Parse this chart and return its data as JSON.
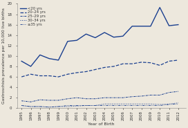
{
  "years": [
    1995,
    1996,
    1997,
    1998,
    1999,
    2000,
    2001,
    2002,
    2003,
    2004,
    2005,
    2006,
    2007,
    2008,
    2009,
    2010,
    2011,
    2012
  ],
  "series": {
    "<20 yrs": [
      9.0,
      8.0,
      10.2,
      9.5,
      9.2,
      12.8,
      13.0,
      14.2,
      13.5,
      14.5,
      13.6,
      13.8,
      15.7,
      15.7,
      15.7,
      19.3,
      15.8,
      16.0
    ],
    "20-24 yrs": [
      6.0,
      6.5,
      6.2,
      6.2,
      6.0,
      6.5,
      6.8,
      7.0,
      7.4,
      7.8,
      8.0,
      8.5,
      8.5,
      8.8,
      8.7,
      8.2,
      9.0,
      9.2
    ],
    "25-29 yrs": [
      1.4,
      1.2,
      1.6,
      1.5,
      1.5,
      1.8,
      2.0,
      1.8,
      1.8,
      2.0,
      2.0,
      2.0,
      2.2,
      2.3,
      2.5,
      2.5,
      3.0,
      3.2
    ],
    "30-34 yrs": [
      0.5,
      0.3,
      0.3,
      0.2,
      0.3,
      0.3,
      0.4,
      0.5,
      0.5,
      0.8,
      0.8,
      0.8,
      0.8,
      0.8,
      0.8,
      0.7,
      0.8,
      1.0
    ],
    ">=35 yrs": [
      0.5,
      0.3,
      0.3,
      0.2,
      0.3,
      0.5,
      0.5,
      0.5,
      0.5,
      0.5,
      0.5,
      0.5,
      0.5,
      0.5,
      0.5,
      0.5,
      0.7,
      0.8
    ]
  },
  "legend_labels": [
    "<20 yrs",
    "20–24 yrs",
    "25–29 yrs",
    "30–34 yrs",
    "≥35 yrs"
  ],
  "series_keys": [
    "<20 yrs",
    "20-24 yrs",
    "25-29 yrs",
    "30-34 yrs",
    ">=35 yrs"
  ],
  "xlabel": "Year of Birth",
  "ylabel": "Gastroschisis prevalence per 10,000 live births",
  "ylim": [
    0,
    20
  ],
  "yticks": [
    0,
    2,
    4,
    6,
    8,
    10,
    12,
    14,
    16,
    18,
    20
  ],
  "xlim": [
    1994.5,
    2012.8
  ],
  "background_color": "#ede8dd",
  "line_color": "#1a3f8f",
  "axis_fontsize": 4.5,
  "tick_fontsize": 4.0,
  "legend_fontsize": 3.8
}
